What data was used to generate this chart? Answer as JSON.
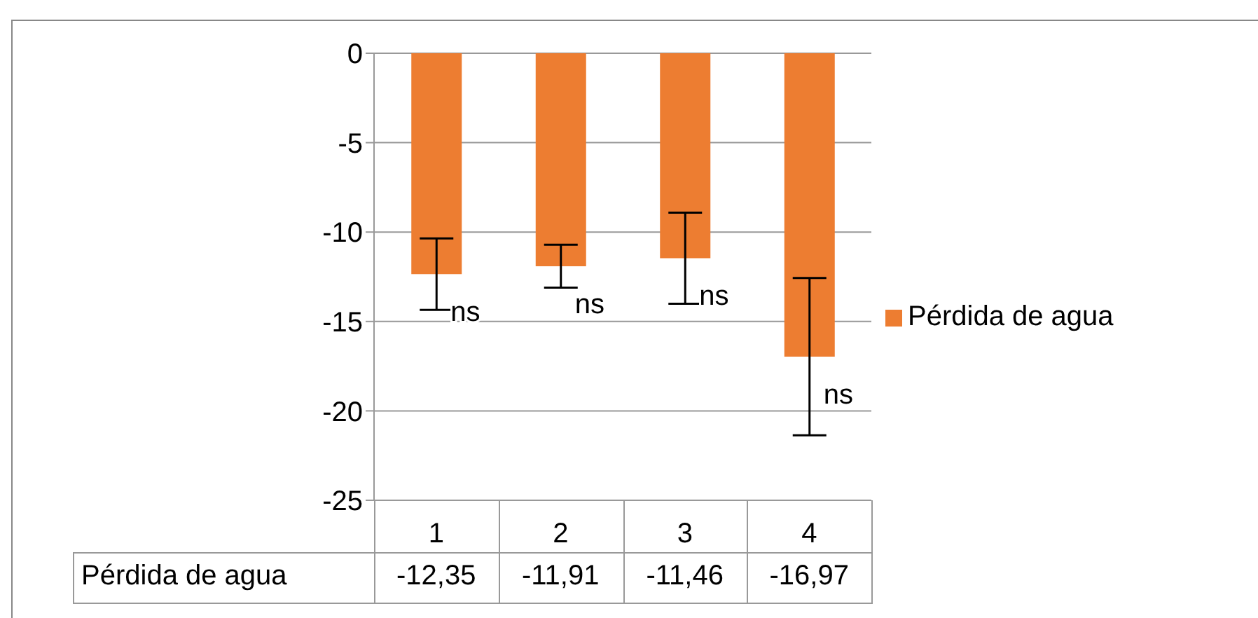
{
  "chart_data": {
    "type": "bar",
    "categories": [
      "1",
      "2",
      "3",
      "4"
    ],
    "series": [
      {
        "name": "Pérdida de agua",
        "color": "#ed7d31",
        "values": [
          -12.35,
          -11.91,
          -11.46,
          -16.97
        ],
        "errors": [
          2.0,
          1.2,
          2.55,
          4.4
        ],
        "value_labels": [
          "-12,35",
          "-11,91",
          "-11,46",
          "-16,97"
        ]
      }
    ],
    "ylim": [
      -25,
      0
    ],
    "yticks": [
      0,
      -5,
      -10,
      -15,
      -20,
      -25
    ],
    "grid": "y",
    "legend": "right",
    "annotations": [
      "ns",
      "ns",
      "ns",
      "ns"
    ]
  }
}
